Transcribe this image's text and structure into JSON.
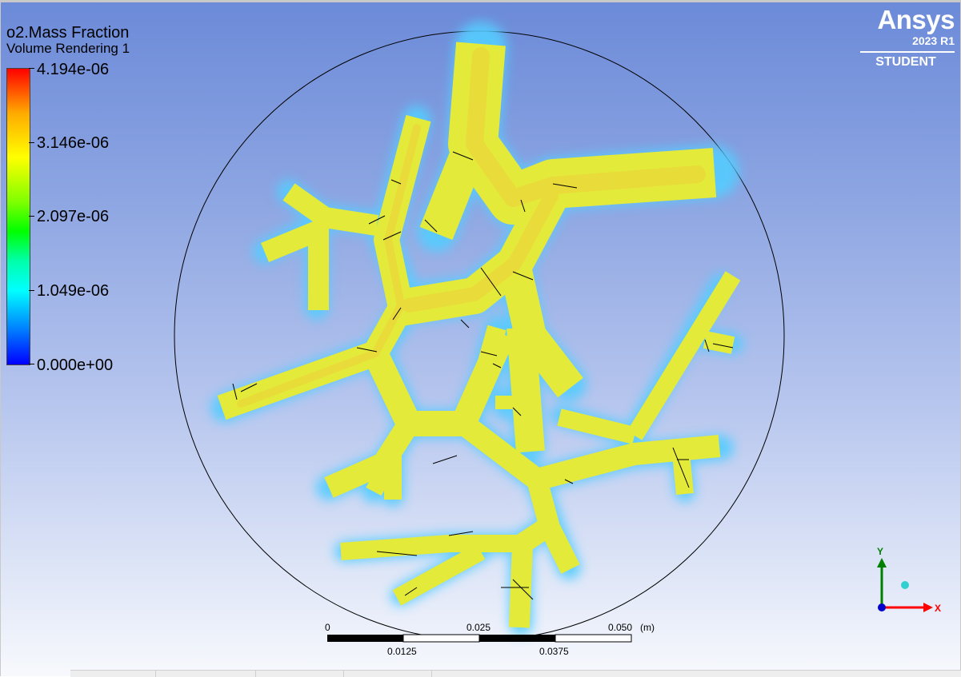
{
  "legend": {
    "title": "o2.Mass Fraction",
    "subtitle": "Volume Rendering 1",
    "max_label": "4.194e-06",
    "tick_labels": [
      "4.194e-06",
      "3.146e-06",
      "2.097e-06",
      "1.049e-06",
      "0.000e+00"
    ],
    "colormap": [
      "#ff0000",
      "#ffaa00",
      "#ffff00",
      "#7fff00",
      "#00ff00",
      "#00ffaa",
      "#00ffff",
      "#0080ff",
      "#0000ff"
    ]
  },
  "logo": {
    "name": "Ansys",
    "version": "2023 R1",
    "edition": "STUDENT"
  },
  "scale_bar": {
    "top_labels": [
      "0",
      "0.025",
      "0.050"
    ],
    "unit": "(m)",
    "bottom_labels": [
      "0.0125",
      "0.0375"
    ]
  },
  "axes": {
    "y_label": "Y",
    "x_label": "X",
    "y_color": "#008000",
    "x_color": "#ff0000",
    "z_color": "#00a0a0"
  },
  "scene": {
    "branch_color": "#e4e83a",
    "glow_color": "#4fd0ff",
    "boundary_color": "#000000"
  }
}
